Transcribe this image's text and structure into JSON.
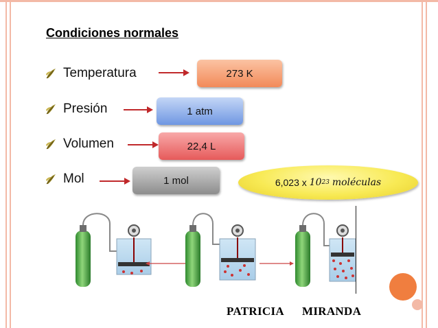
{
  "title": "Condiciones normales",
  "bullets": [
    {
      "label": "Temperatura",
      "value": "273 K"
    },
    {
      "label": "Presión",
      "value": "1 atm"
    },
    {
      "label": "Volumen",
      "value": "22,4 L"
    },
    {
      "label": "Mol",
      "value": "1 mol"
    }
  ],
  "molecules": {
    "base": "6,023 x",
    "mantissa": "10",
    "exponent": "23",
    "unit": "moléculas"
  },
  "names": {
    "left": "PATRICIA",
    "right": "MIRANDA"
  },
  "colors": {
    "temperature_box": "#f7a37a",
    "pressure_box": "#8fb0ea",
    "volume_box": "#ef7b7b",
    "mol_box": "#a6a6a6",
    "ellipse": "#f8ea55",
    "arrow": "#c0282a",
    "accent": "#f07e3f"
  },
  "icons": [
    "bullet-leaf-icon",
    "gas-cylinder-icon",
    "pressure-gauge-icon"
  ]
}
